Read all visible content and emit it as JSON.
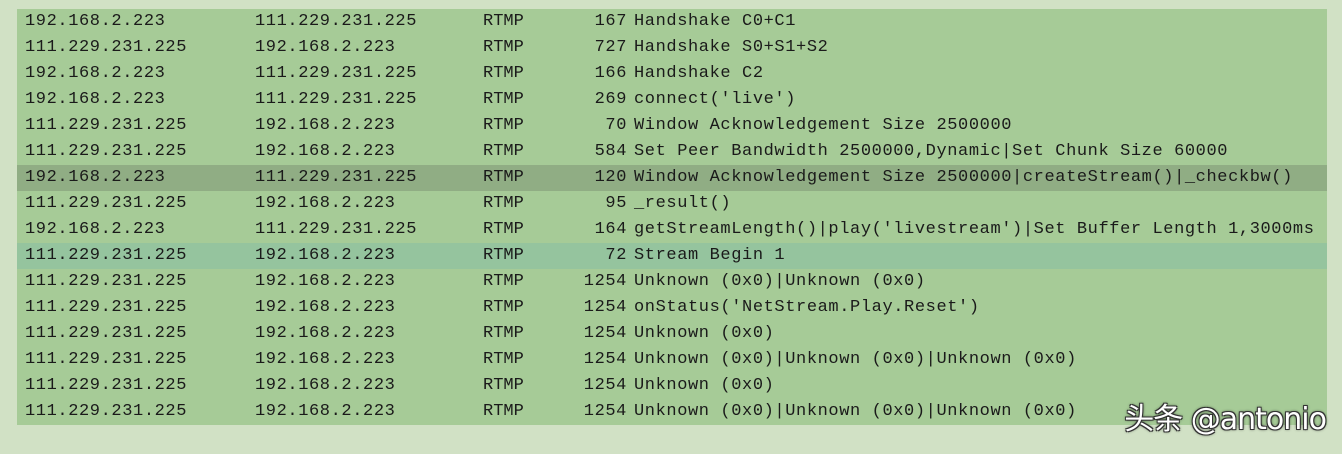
{
  "packets": [
    {
      "src": "192.168.2.223",
      "dst": "111.229.231.225",
      "proto": "RTMP",
      "len": "167",
      "info": "Handshake C0+C1",
      "state": "normal"
    },
    {
      "src": "111.229.231.225",
      "dst": "192.168.2.223",
      "proto": "RTMP",
      "len": "727",
      "info": "Handshake S0+S1+S2",
      "state": "normal"
    },
    {
      "src": "192.168.2.223",
      "dst": "111.229.231.225",
      "proto": "RTMP",
      "len": "166",
      "info": "Handshake C2",
      "state": "normal"
    },
    {
      "src": "192.168.2.223",
      "dst": "111.229.231.225",
      "proto": "RTMP",
      "len": "269",
      "info": "connect('live')",
      "state": "normal"
    },
    {
      "src": "111.229.231.225",
      "dst": "192.168.2.223",
      "proto": "RTMP",
      "len": "70",
      "info": "Window Acknowledgement Size 2500000",
      "state": "normal"
    },
    {
      "src": "111.229.231.225",
      "dst": "192.168.2.223",
      "proto": "RTMP",
      "len": "584",
      "info": "Set Peer Bandwidth 2500000,Dynamic|Set Chunk Size 60000",
      "state": "normal"
    },
    {
      "src": "192.168.2.223",
      "dst": "111.229.231.225",
      "proto": "RTMP",
      "len": "120",
      "info": "Window Acknowledgement Size 2500000|createStream()|_checkbw()",
      "state": "selected"
    },
    {
      "src": "111.229.231.225",
      "dst": "192.168.2.223",
      "proto": "RTMP",
      "len": "95",
      "info": "_result()",
      "state": "normal"
    },
    {
      "src": "192.168.2.223",
      "dst": "111.229.231.225",
      "proto": "RTMP",
      "len": "164",
      "info": "getStreamLength()|play('livestream')|Set Buffer Length 1,3000ms",
      "state": "normal"
    },
    {
      "src": "111.229.231.225",
      "dst": "192.168.2.223",
      "proto": "RTMP",
      "len": "72",
      "info": "Stream Begin 1",
      "state": "highlighted"
    },
    {
      "src": "111.229.231.225",
      "dst": "192.168.2.223",
      "proto": "RTMP",
      "len": "1254",
      "info": "Unknown (0x0)|Unknown (0x0)",
      "state": "normal"
    },
    {
      "src": "111.229.231.225",
      "dst": "192.168.2.223",
      "proto": "RTMP",
      "len": "1254",
      "info": "onStatus('NetStream.Play.Reset')",
      "state": "normal"
    },
    {
      "src": "111.229.231.225",
      "dst": "192.168.2.223",
      "proto": "RTMP",
      "len": "1254",
      "info": "Unknown (0x0)",
      "state": "normal"
    },
    {
      "src": "111.229.231.225",
      "dst": "192.168.2.223",
      "proto": "RTMP",
      "len": "1254",
      "info": "Unknown (0x0)|Unknown (0x0)|Unknown (0x0)",
      "state": "normal"
    },
    {
      "src": "111.229.231.225",
      "dst": "192.168.2.223",
      "proto": "RTMP",
      "len": "1254",
      "info": "Unknown (0x0)",
      "state": "normal"
    },
    {
      "src": "111.229.231.225",
      "dst": "192.168.2.223",
      "proto": "RTMP",
      "len": "1254",
      "info": "Unknown (0x0)|Unknown (0x0)|Unknown (0x0)",
      "state": "normal"
    }
  ],
  "watermark": "头条 @antonio",
  "colors": {
    "row": "#a6cb97",
    "selected": "#90ad84",
    "highlighted": "#95c49e",
    "background": "#d1e1c5"
  }
}
